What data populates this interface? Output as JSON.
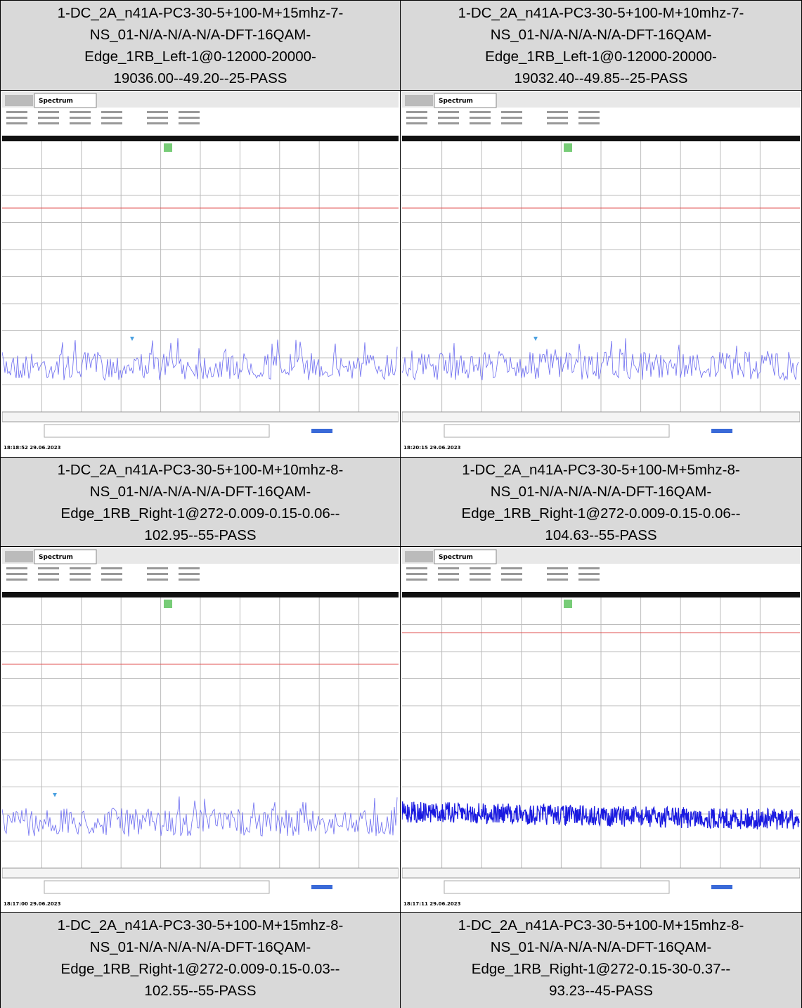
{
  "rows": [
    {
      "titles": [
        [
          "1-DC_2A_n41A-PC3-30-5+100-M+15mhz-7-",
          "NS_01-N/A-N/A-N/A-DFT-16QAM-",
          "Edge_1RB_Left-1@0-12000-20000-",
          "19036.00--49.20--25-PASS"
        ],
        [
          "1-DC_2A_n41A-PC3-30-5+100-M+10mhz-7-",
          "NS_01-N/A-N/A-N/A-DFT-16QAM-",
          "Edge_1RB_Left-1@0-12000-20000-",
          "19032.40--49.85--25-PASS"
        ]
      ]
    },
    {
      "screenshots": [
        {
          "tab": "Spectrum",
          "timestamp": "18:18:52 29.06.2023"
        },
        {
          "tab": "Spectrum",
          "timestamp": "18:20:15 29.06.2023"
        }
      ]
    },
    {
      "titles": [
        [
          "1-DC_2A_n41A-PC3-30-5+100-M+10mhz-8-",
          "NS_01-N/A-N/A-N/A-DFT-16QAM-",
          "Edge_1RB_Right-1@272-0.009-0.15-0.06--",
          "102.95--55-PASS"
        ],
        [
          "1-DC_2A_n41A-PC3-30-5+100-M+5mhz-8-",
          "NS_01-N/A-N/A-N/A-DFT-16QAM-",
          "Edge_1RB_Right-1@272-0.009-0.15-0.06--",
          "104.63--55-PASS"
        ]
      ]
    },
    {
      "screenshots": [
        {
          "tab": "Spectrum",
          "timestamp": "18:17:00 29.06.2023"
        },
        {
          "tab": "Spectrum",
          "timestamp": "18:17:11 29.06.2023"
        }
      ]
    },
    {
      "titles": [
        [
          "1-DC_2A_n41A-PC3-30-5+100-M+15mhz-8-",
          "NS_01-N/A-N/A-N/A-DFT-16QAM-",
          "Edge_1RB_Right-1@272-0.009-0.15-0.03--",
          "102.55--55-PASS"
        ],
        [
          "1-DC_2A_n41A-PC3-30-5+100-M+15mhz-8-",
          "NS_01-N/A-N/A-N/A-DFT-16QAM-",
          "Edge_1RB_Right-1@272-0.15-30-0.37--",
          "93.23--45-PASS"
        ]
      ]
    }
  ]
}
